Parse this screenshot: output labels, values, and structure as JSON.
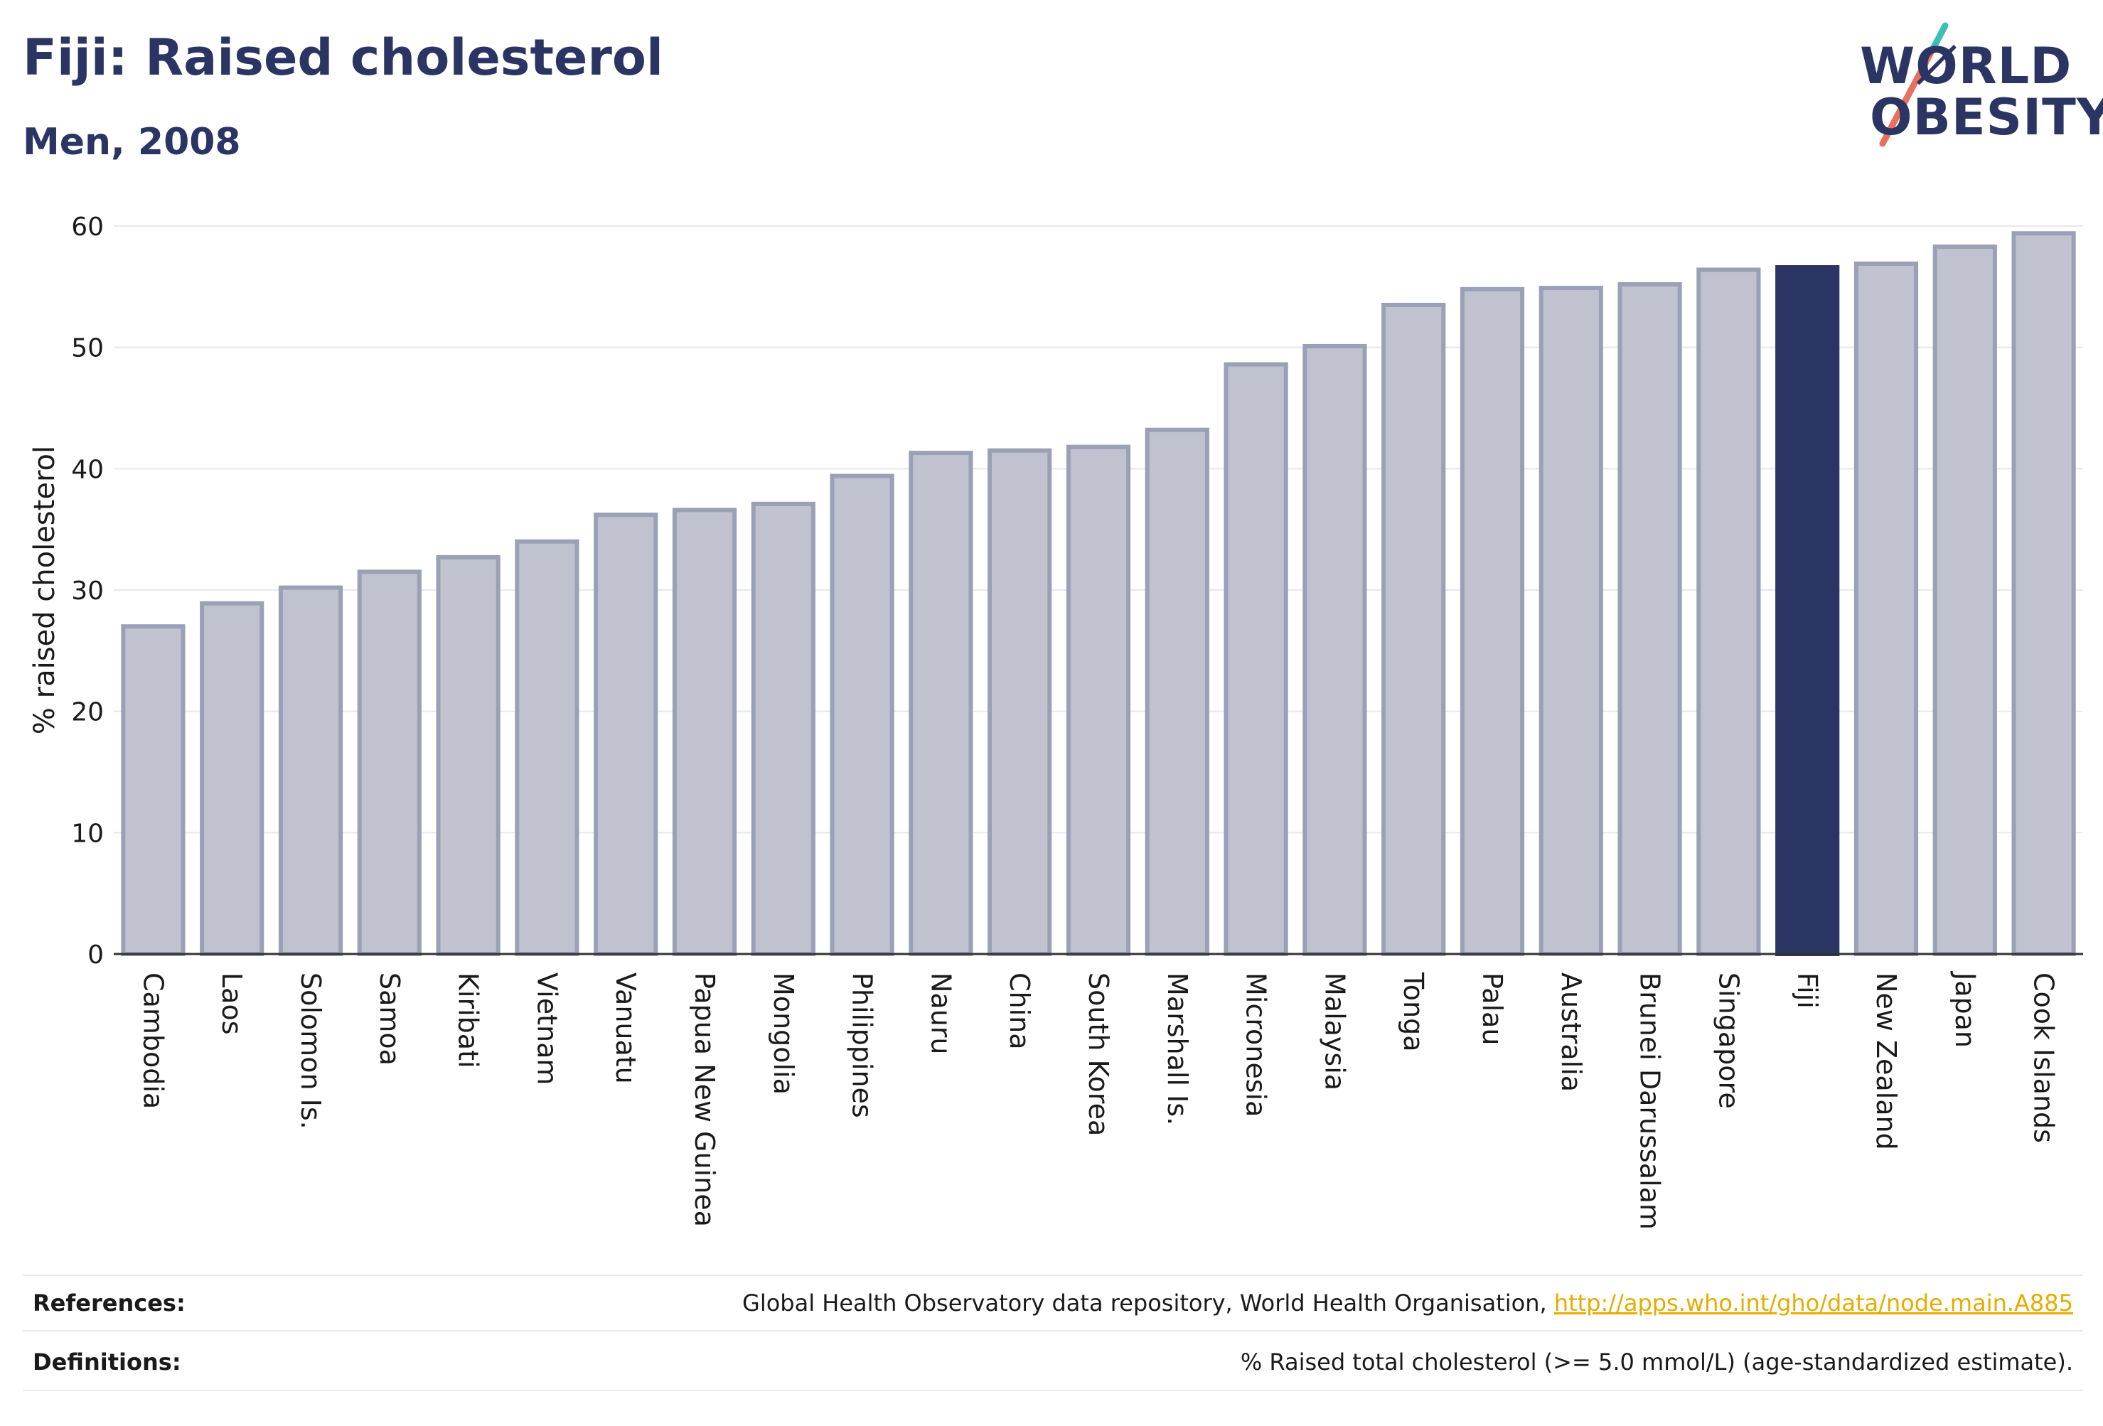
{
  "title": "Fiji: Raised cholesterol",
  "subtitle": "Men, 2008",
  "logo": {
    "line1": "WØRLD",
    "line2": "OBESITY"
  },
  "footer": {
    "references_label": "References:",
    "references_text": "Global Health Observatory data repository, World Health Organisation, ",
    "references_link": "http://apps.who.int/gho/data/node.main.A885",
    "definitions_label": "Definitions:",
    "definitions_text": "% Raised total cholesterol (>= 5.0 mmol/L) (age-standardized estimate)."
  },
  "colors": {
    "bar": "#c0c3cf",
    "bar_stroke": "#9aa0b6",
    "highlight": "#2b3563",
    "grid": "#e6e8ee"
  },
  "chart_data": {
    "type": "bar",
    "title": "Fiji: Raised cholesterol",
    "subtitle": "Men, 2008",
    "xlabel": "",
    "ylabel": "% raised cholesterol",
    "ylim": [
      0,
      60
    ],
    "yticks": [
      0,
      10,
      20,
      30,
      40,
      50,
      60
    ],
    "grid": true,
    "highlight": "Fiji",
    "categories": [
      "Cambodia",
      "Laos",
      "Solomon Is.",
      "Samoa",
      "Kiribati",
      "Vietnam",
      "Vanuatu",
      "Papua New Guinea",
      "Mongolia",
      "Philippines",
      "Nauru",
      "China",
      "South Korea",
      "Marshall Is.",
      "Micronesia",
      "Malaysia",
      "Tonga",
      "Palau",
      "Australia",
      "Brunei Darussalam",
      "Singapore",
      "Fiji",
      "New Zealand",
      "Japan",
      "Cook Islands"
    ],
    "values": [
      27.0,
      28.9,
      30.2,
      31.5,
      32.7,
      34.0,
      36.2,
      36.6,
      37.1,
      39.4,
      41.3,
      41.5,
      41.8,
      43.2,
      48.6,
      50.1,
      53.5,
      54.8,
      54.9,
      55.2,
      56.4,
      56.6,
      56.9,
      58.3,
      59.4
    ]
  }
}
